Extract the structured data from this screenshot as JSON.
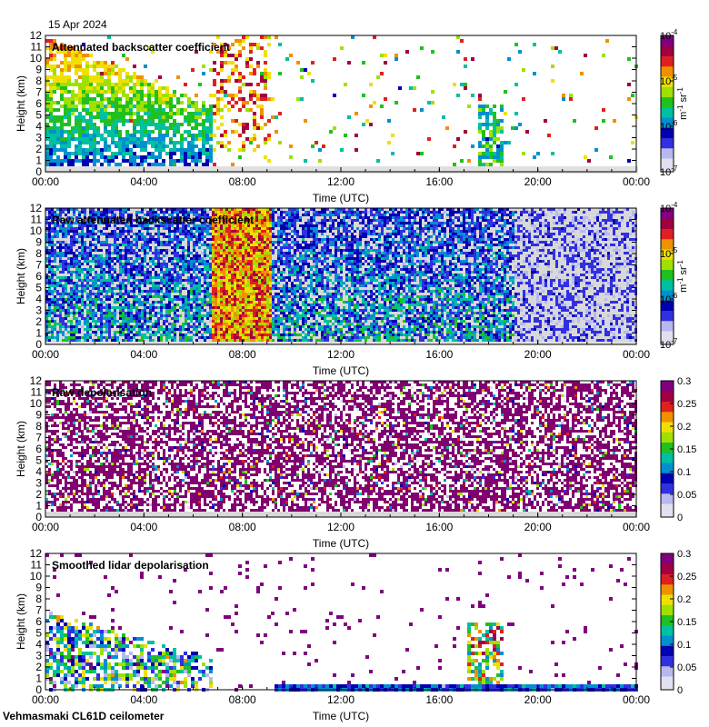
{
  "header": {
    "date": "15 Apr 2024"
  },
  "footer": {
    "instrument": "Vehmasmaki CL61D ceilometer"
  },
  "chart_data": [
    {
      "type": "heatmap",
      "title": "Attenuated backscatter coefficient",
      "xlabel": "Time (UTC)",
      "ylabel": "Height (km)",
      "x_ticks": [
        "00:00",
        "04:00",
        "08:00",
        "12:00",
        "16:00",
        "20:00",
        "00:00"
      ],
      "xlim_hours": [
        0,
        24
      ],
      "ylim": [
        0,
        12
      ],
      "y_ticks": [
        0,
        1,
        2,
        3,
        4,
        5,
        6,
        7,
        8,
        9,
        10,
        11,
        12
      ],
      "colorbar": {
        "scale": "log",
        "range": [
          1e-07,
          0.0001
        ],
        "unit_base": "m",
        "unit_base_exp": "-1",
        "unit_sr": "sr",
        "unit_sr_exp": "-1",
        "ticks": [
          {
            "base": "10",
            "exp": "-4"
          },
          {
            "base": "10",
            "exp": "-5"
          },
          {
            "base": "10",
            "exp": "-6"
          },
          {
            "base": "10",
            "exp": "-7"
          }
        ]
      },
      "colormap": [
        "#e8e8e8",
        "#b8b8e8",
        "#4040e0",
        "#0010c0",
        "#00a0c0",
        "#00c060",
        "#80d000",
        "#e8e000",
        "#f09000",
        "#e02000",
        "#900000",
        "#800060"
      ]
    },
    {
      "type": "heatmap",
      "title": "Raw attenuated backscatter coefficient",
      "xlabel": "Time (UTC)",
      "ylabel": "Height (km)",
      "x_ticks": [
        "00:00",
        "04:00",
        "08:00",
        "12:00",
        "16:00",
        "20:00",
        "00:00"
      ],
      "xlim_hours": [
        0,
        24
      ],
      "ylim": [
        0,
        12
      ],
      "y_ticks": [
        0,
        1,
        2,
        3,
        4,
        5,
        6,
        7,
        8,
        9,
        10,
        11,
        12
      ],
      "colorbar": {
        "scale": "log",
        "range": [
          1e-07,
          0.0001
        ],
        "unit_base": "m",
        "unit_base_exp": "-1",
        "unit_sr": "sr",
        "unit_sr_exp": "-1",
        "ticks": [
          {
            "base": "10",
            "exp": "-4"
          },
          {
            "base": "10",
            "exp": "-5"
          },
          {
            "base": "10",
            "exp": "-6"
          },
          {
            "base": "10",
            "exp": "-7"
          }
        ]
      }
    },
    {
      "type": "heatmap",
      "title": "Raw depolarisation",
      "xlabel": "Time (UTC)",
      "ylabel": "Height (km)",
      "x_ticks": [
        "00:00",
        "04:00",
        "08:00",
        "12:00",
        "16:00",
        "20:00",
        "00:00"
      ],
      "xlim_hours": [
        0,
        24
      ],
      "ylim": [
        0,
        12
      ],
      "y_ticks": [
        0,
        1,
        2,
        3,
        4,
        5,
        6,
        7,
        8,
        9,
        10,
        11,
        12
      ],
      "colorbar": {
        "scale": "linear",
        "range": [
          0,
          0.3
        ],
        "ticks": [
          "0",
          "0.05",
          "0.1",
          "0.15",
          "0.2",
          "0.25",
          "0.3"
        ]
      }
    },
    {
      "type": "heatmap",
      "title": "Smoothed lidar depolarisation",
      "xlabel": "Time (UTC)",
      "ylabel": "Height (km)",
      "x_ticks": [
        "00:00",
        "04:00",
        "08:00",
        "12:00",
        "16:00",
        "20:00",
        "00:00"
      ],
      "xlim_hours": [
        0,
        24
      ],
      "ylim": [
        0,
        12
      ],
      "y_ticks": [
        0,
        1,
        2,
        3,
        4,
        5,
        6,
        7,
        8,
        9,
        10,
        11,
        12
      ],
      "colorbar": {
        "scale": "linear",
        "range": [
          0,
          0.3
        ],
        "ticks": [
          "0",
          "0.05",
          "0.1",
          "0.15",
          "0.2",
          "0.25",
          "0.3"
        ]
      }
    }
  ]
}
